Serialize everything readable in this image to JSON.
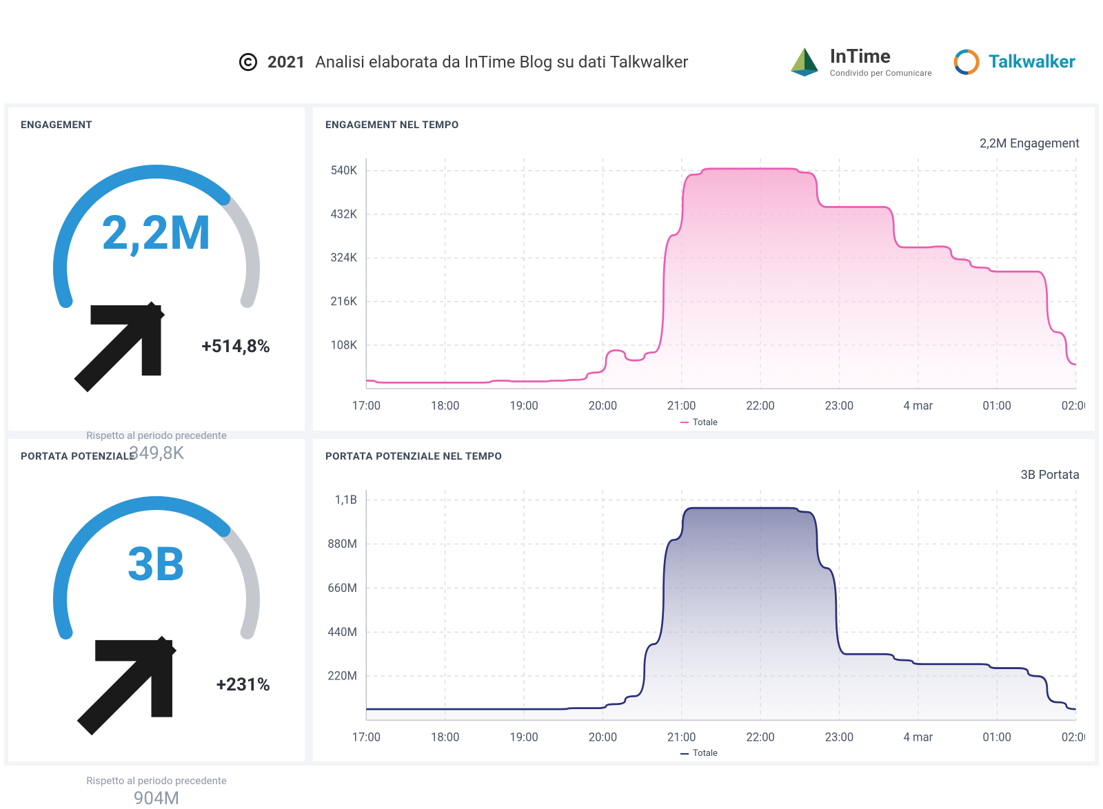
{
  "header": {
    "copyright_year": "2021",
    "attribution": "Analisi elaborata da InTime Blog su dati Talkwalker",
    "logos": {
      "intime_name": "InTime",
      "intime_tag": "Condivido per Comunicare",
      "talkwalker_name": "Talkwalker"
    }
  },
  "gauges": {
    "engagement": {
      "title": "ENGAGEMENT",
      "value": "2,2M",
      "value_color": "#2b95d6",
      "delta": "+514,8%",
      "compare_label": "Rispetto al periodo precedente",
      "previous": "349,8K",
      "fill_ratio": 0.7,
      "fill_color": "#2b95d6",
      "track_color": "#c5c9cf",
      "track_darker": "#6f7680",
      "stroke_width": 20
    },
    "portata": {
      "title": "PORTATA POTENZIALE",
      "value": "3B",
      "value_color": "#2b95d6",
      "delta": "+231%",
      "compare_label": "Rispetto al periodo precedente",
      "previous": "904M",
      "fill_ratio": 0.7,
      "fill_color": "#2b95d6",
      "track_color": "#c5c9cf",
      "track_darker": "#6f7680",
      "stroke_width": 20
    }
  },
  "charts": {
    "engagement": {
      "title": "ENGAGEMENT NEL TEMPO",
      "annotation": "2,2M Engagement",
      "type": "area",
      "line_color": "#e85db1",
      "fill_top": "#f7a7cf",
      "fill_bottom": "#fdedf5",
      "line_width": 2,
      "legend": "Totale",
      "ylim": [
        0,
        570000
      ],
      "ytick_values": [
        108000,
        216000,
        324000,
        432000,
        540000
      ],
      "ytick_labels": [
        "108K",
        "216K",
        "324K",
        "432K",
        "540K"
      ],
      "x_labels": [
        "17:00",
        "18:00",
        "19:00",
        "20:00",
        "21:00",
        "22:00",
        "23:00",
        "4 mar",
        "01:00",
        "02:00"
      ],
      "values": [
        20000,
        15000,
        15000,
        15000,
        15000,
        15000,
        15000,
        20000,
        18000,
        18000,
        20000,
        22000,
        40000,
        95000,
        70000,
        90000,
        380000,
        530000,
        545000,
        545000,
        545000,
        545000,
        545000,
        535000,
        450000,
        450000,
        450000,
        450000,
        350000,
        350000,
        352000,
        320000,
        300000,
        290000,
        290000,
        290000,
        140000,
        60000
      ],
      "grid_color": "#d8dbe0",
      "axis_color": "#b8bfc8",
      "background": "#ffffff",
      "ytick_fontsize": 12.5,
      "xtick_fontsize": 12.5
    },
    "portata": {
      "title": "PORTATA POTENZIALE NEL TEMPO",
      "annotation": "3B Portata",
      "type": "area",
      "line_color": "#2b2f7a",
      "fill_top": "#7a7da8",
      "fill_bottom": "#e6e6f0",
      "line_width": 2,
      "legend": "Totale",
      "ylim": [
        0,
        1150000000
      ],
      "ytick_values": [
        220000000,
        440000000,
        660000000,
        880000000,
        1100000000
      ],
      "ytick_labels": [
        "220M",
        "440M",
        "660M",
        "880M",
        "1,1B"
      ],
      "x_labels": [
        "17:00",
        "18:00",
        "19:00",
        "20:00",
        "21:00",
        "22:00",
        "23:00",
        "4 mar",
        "01:00",
        "02:00"
      ],
      "values": [
        55000000,
        55000000,
        55000000,
        55000000,
        55000000,
        55000000,
        55000000,
        55000000,
        55000000,
        55000000,
        55000000,
        60000000,
        60000000,
        80000000,
        120000000,
        380000000,
        900000000,
        1060000000,
        1060000000,
        1060000000,
        1060000000,
        1060000000,
        1060000000,
        1040000000,
        760000000,
        330000000,
        330000000,
        330000000,
        300000000,
        280000000,
        280000000,
        280000000,
        280000000,
        260000000,
        260000000,
        220000000,
        90000000,
        55000000
      ],
      "grid_color": "#d8dbe0",
      "axis_color": "#b8bfc8",
      "background": "#ffffff",
      "ytick_fontsize": 12.5,
      "xtick_fontsize": 12.5
    }
  }
}
